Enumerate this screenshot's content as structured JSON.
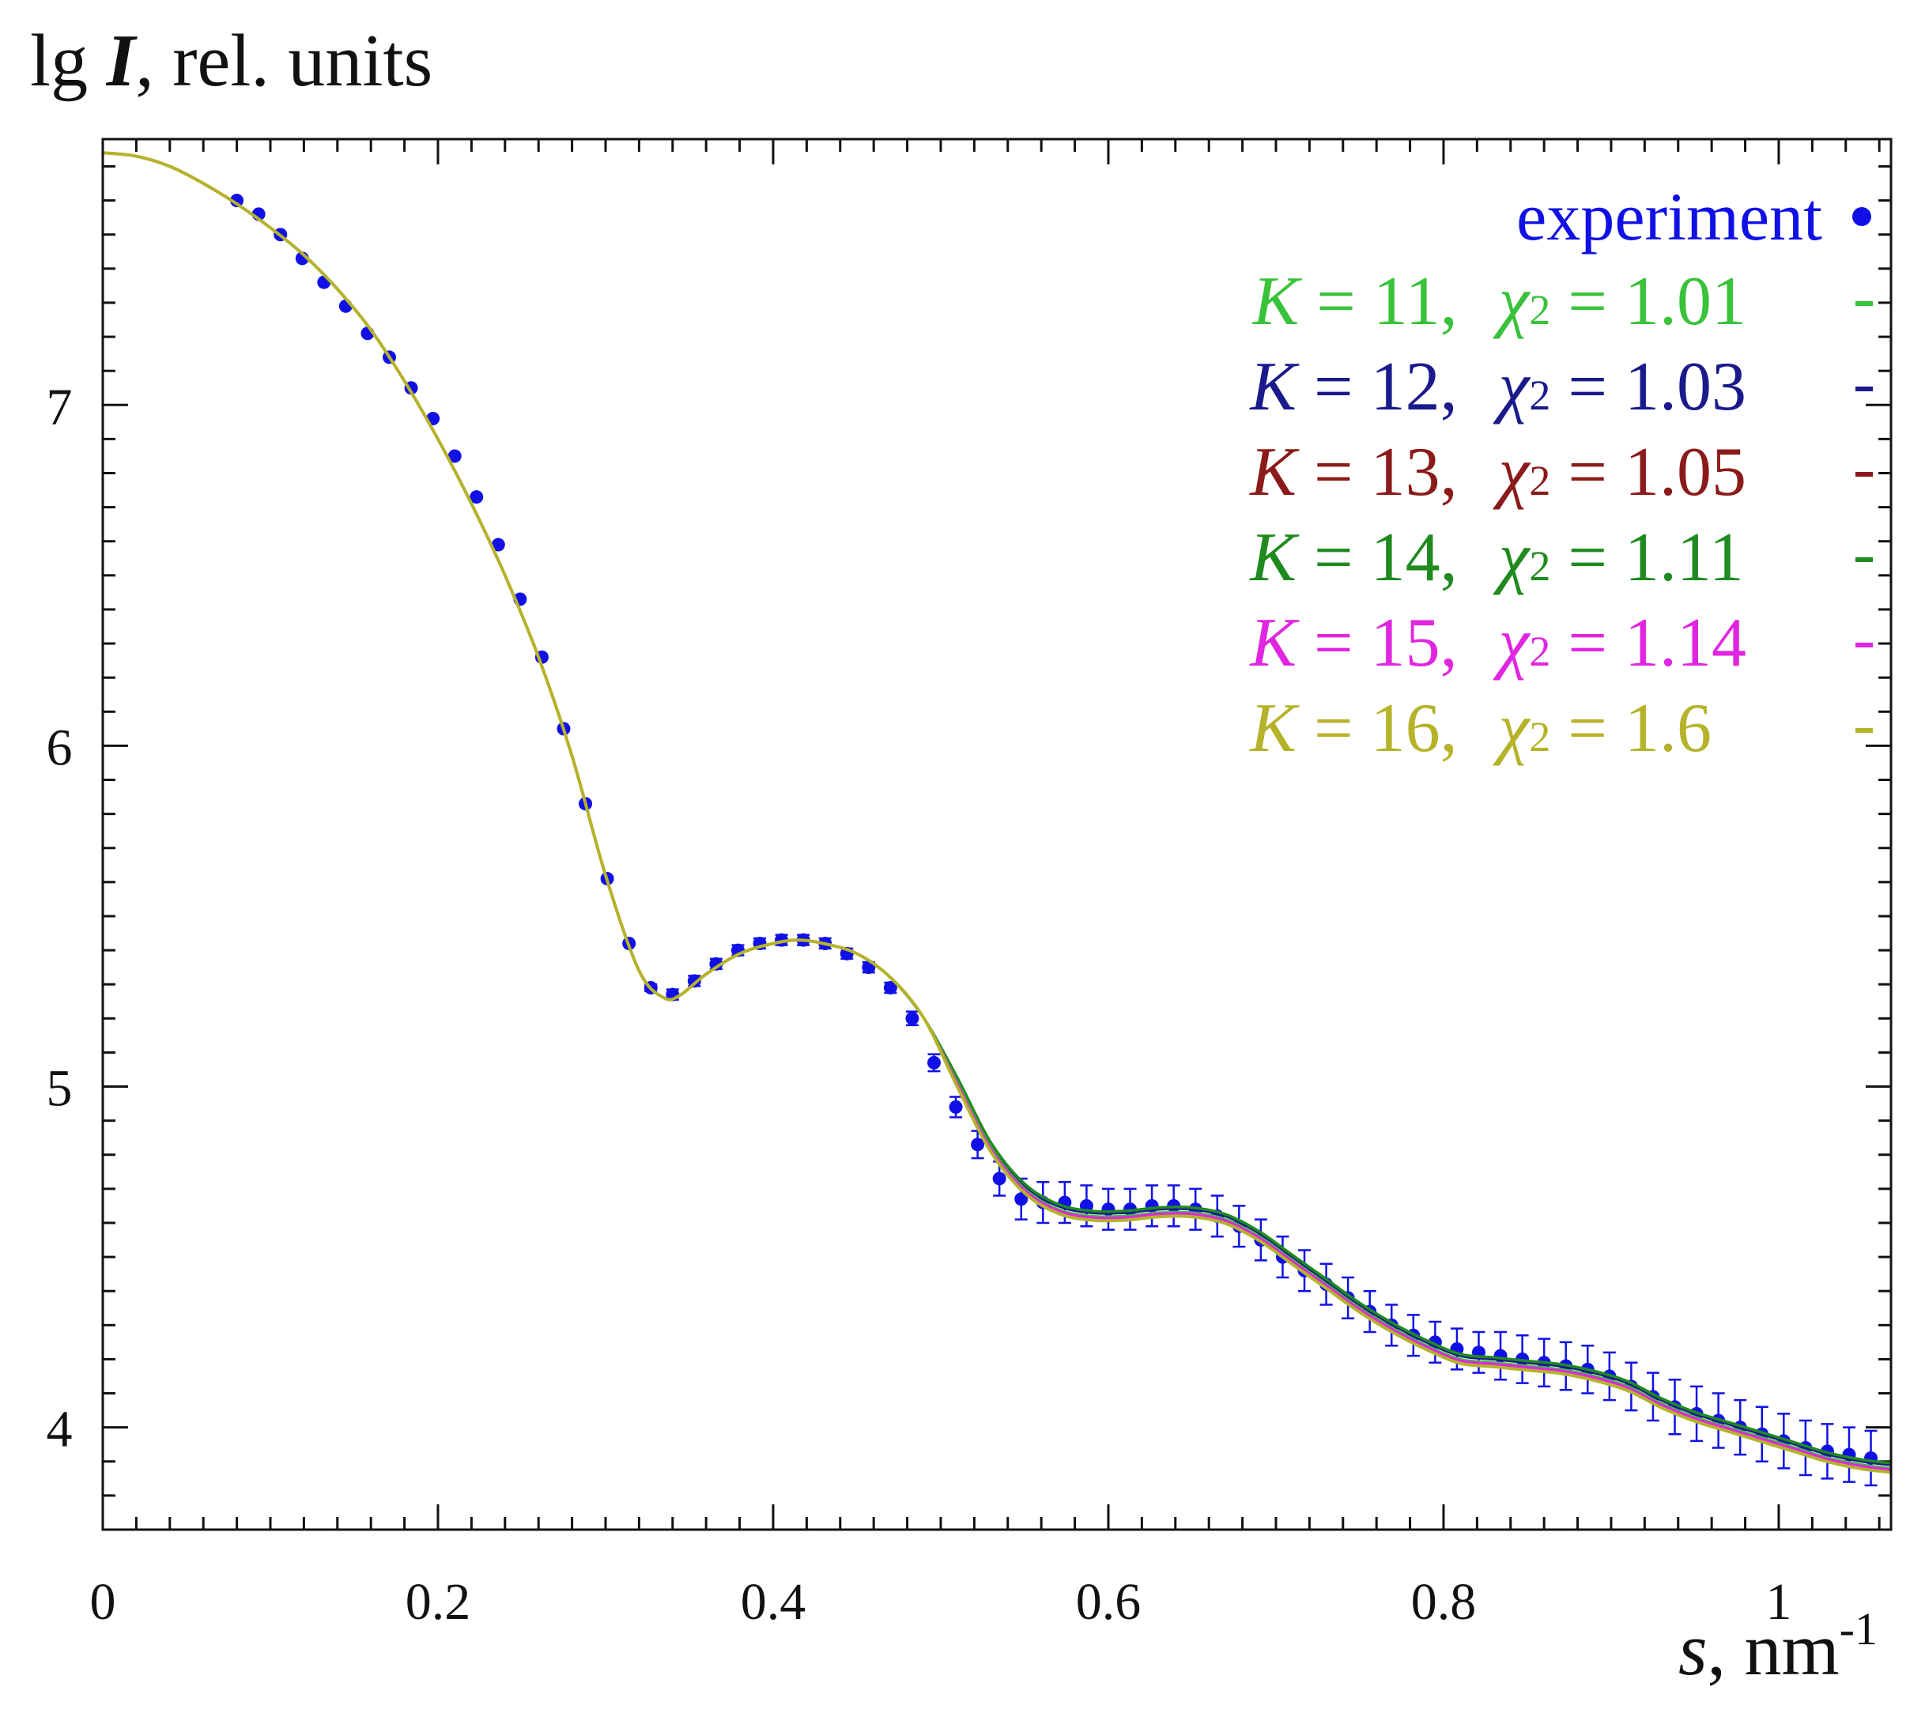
{
  "colors": {
    "experiment": "#1010e6",
    "k11": "#39c23a",
    "k12": "#1a1a8c",
    "k13": "#8b1a1a",
    "k14": "#1f8a1f",
    "k15": "#e026e0",
    "k16": "#b5b32a",
    "axis": "#111111"
  },
  "chart_data": {
    "type": "line",
    "title": "",
    "ylabel_prefix": "lg ",
    "ylabel_symbol": "I",
    "ylabel_suffix": ", rel. units",
    "xlabel_symbol": "s",
    "xlabel_suffix": ", nm",
    "xlabel_exponent": "-1",
    "xlim": [
      0,
      1.067
    ],
    "ylim": [
      3.7,
      7.78
    ],
    "xticks": [
      0,
      0.2,
      0.4,
      0.6,
      0.8,
      1
    ],
    "xtick_labels": [
      "0",
      "0.2",
      "0.4",
      "0.6",
      "0.8",
      "1"
    ],
    "yticks": [
      4,
      5,
      6,
      7
    ],
    "ytick_labels": [
      "4",
      "5",
      "6",
      "7"
    ],
    "grid": false,
    "legend_position": "top-right",
    "experiment": {
      "name": "experiment",
      "marker": "•",
      "x": [
        0.08,
        0.093,
        0.106,
        0.119,
        0.132,
        0.145,
        0.158,
        0.171,
        0.184,
        0.197,
        0.21,
        0.223,
        0.236,
        0.249,
        0.262,
        0.275,
        0.288,
        0.301,
        0.314,
        0.327,
        0.34,
        0.353,
        0.366,
        0.379,
        0.392,
        0.405,
        0.418,
        0.431,
        0.444,
        0.457,
        0.47,
        0.483,
        0.496,
        0.509,
        0.522,
        0.535,
        0.548,
        0.561,
        0.574,
        0.587,
        0.6,
        0.613,
        0.626,
        0.639,
        0.652,
        0.665,
        0.678,
        0.691,
        0.704,
        0.717,
        0.73,
        0.743,
        0.756,
        0.769,
        0.782,
        0.795,
        0.808,
        0.821,
        0.834,
        0.847,
        0.86,
        0.873,
        0.886,
        0.899,
        0.912,
        0.925,
        0.938,
        0.951,
        0.964,
        0.977,
        0.99,
        1.003,
        1.016,
        1.029,
        1.042,
        1.055
      ],
      "y": [
        7.6,
        7.56,
        7.5,
        7.43,
        7.36,
        7.29,
        7.21,
        7.14,
        7.05,
        6.96,
        6.85,
        6.73,
        6.59,
        6.43,
        6.26,
        6.05,
        5.83,
        5.61,
        5.42,
        5.29,
        5.27,
        5.31,
        5.36,
        5.4,
        5.42,
        5.43,
        5.43,
        5.42,
        5.39,
        5.35,
        5.29,
        5.2,
        5.07,
        4.94,
        4.83,
        4.73,
        4.67,
        4.66,
        4.66,
        4.65,
        4.64,
        4.64,
        4.65,
        4.65,
        4.64,
        4.62,
        4.59,
        4.55,
        4.5,
        4.46,
        4.42,
        4.38,
        4.34,
        4.3,
        4.27,
        4.25,
        4.23,
        4.22,
        4.21,
        4.2,
        4.19,
        4.18,
        4.17,
        4.15,
        4.12,
        4.09,
        4.06,
        4.04,
        4.02,
        4.0,
        3.98,
        3.96,
        3.94,
        3.93,
        3.92,
        3.91
      ],
      "error": [
        0.005,
        0.005,
        0.005,
        0.005,
        0.005,
        0.005,
        0.005,
        0.005,
        0.005,
        0.005,
        0.005,
        0.005,
        0.005,
        0.005,
        0.005,
        0.005,
        0.006,
        0.006,
        0.006,
        0.01,
        0.015,
        0.015,
        0.015,
        0.015,
        0.015,
        0.015,
        0.015,
        0.015,
        0.015,
        0.015,
        0.015,
        0.02,
        0.025,
        0.03,
        0.04,
        0.05,
        0.06,
        0.06,
        0.06,
        0.06,
        0.06,
        0.06,
        0.06,
        0.06,
        0.06,
        0.06,
        0.06,
        0.06,
        0.06,
        0.06,
        0.06,
        0.06,
        0.06,
        0.06,
        0.06,
        0.06,
        0.06,
        0.06,
        0.07,
        0.07,
        0.07,
        0.07,
        0.07,
        0.07,
        0.07,
        0.07,
        0.08,
        0.08,
        0.08,
        0.08,
        0.08,
        0.08,
        0.08,
        0.08,
        0.08,
        0.08
      ]
    },
    "fit_x": [
      0.0,
      0.02,
      0.04,
      0.06,
      0.08,
      0.1,
      0.12,
      0.14,
      0.16,
      0.18,
      0.2,
      0.22,
      0.24,
      0.26,
      0.28,
      0.3,
      0.32,
      0.335,
      0.345,
      0.36,
      0.38,
      0.4,
      0.415,
      0.43,
      0.45,
      0.47,
      0.49,
      0.51,
      0.53,
      0.55,
      0.57,
      0.59,
      0.61,
      0.63,
      0.65,
      0.67,
      0.69,
      0.71,
      0.73,
      0.75,
      0.77,
      0.79,
      0.81,
      0.83,
      0.85,
      0.87,
      0.89,
      0.91,
      0.93,
      0.95,
      0.97,
      0.99,
      1.01,
      1.03,
      1.05,
      1.067
    ],
    "series": [
      {
        "name": "K = 11,  χ2 = 1.01",
        "K": 11,
        "chi2": "1.01",
        "offset": 0.0,
        "y": [
          7.74,
          7.73,
          7.7,
          7.65,
          7.59,
          7.52,
          7.44,
          7.34,
          7.22,
          7.07,
          6.9,
          6.71,
          6.5,
          6.26,
          5.97,
          5.62,
          5.34,
          5.26,
          5.27,
          5.33,
          5.39,
          5.42,
          5.43,
          5.42,
          5.39,
          5.32,
          5.2,
          5.01,
          4.82,
          4.7,
          4.64,
          4.62,
          4.62,
          4.63,
          4.63,
          4.61,
          4.56,
          4.49,
          4.42,
          4.35,
          4.29,
          4.24,
          4.2,
          4.19,
          4.18,
          4.17,
          4.15,
          4.12,
          4.07,
          4.03,
          4.0,
          3.97,
          3.94,
          3.91,
          3.89,
          3.88
        ]
      },
      {
        "name": "K = 12,  χ2 = 1.03",
        "K": 12,
        "chi2": "1.03",
        "offset": 0.01,
        "y": [
          7.74,
          7.73,
          7.7,
          7.65,
          7.59,
          7.52,
          7.44,
          7.34,
          7.22,
          7.07,
          6.9,
          6.71,
          6.5,
          6.26,
          5.97,
          5.62,
          5.34,
          5.26,
          5.27,
          5.33,
          5.39,
          5.42,
          5.43,
          5.42,
          5.39,
          5.32,
          5.2,
          5.01,
          4.82,
          4.7,
          4.64,
          4.62,
          4.62,
          4.63,
          4.63,
          4.61,
          4.56,
          4.49,
          4.42,
          4.35,
          4.29,
          4.24,
          4.2,
          4.19,
          4.18,
          4.17,
          4.15,
          4.12,
          4.07,
          4.03,
          4.0,
          3.97,
          3.94,
          3.91,
          3.89,
          3.88
        ]
      },
      {
        "name": "K = 13,  χ2 = 1.05",
        "K": 13,
        "chi2": "1.05",
        "offset": -0.008,
        "y": [
          7.74,
          7.73,
          7.7,
          7.65,
          7.59,
          7.52,
          7.44,
          7.34,
          7.22,
          7.07,
          6.9,
          6.71,
          6.5,
          6.26,
          5.97,
          5.62,
          5.34,
          5.26,
          5.27,
          5.33,
          5.39,
          5.42,
          5.43,
          5.42,
          5.39,
          5.32,
          5.2,
          5.01,
          4.82,
          4.7,
          4.64,
          4.62,
          4.62,
          4.63,
          4.63,
          4.61,
          4.56,
          4.49,
          4.42,
          4.35,
          4.29,
          4.24,
          4.2,
          4.19,
          4.18,
          4.17,
          4.15,
          4.12,
          4.07,
          4.03,
          4.0,
          3.97,
          3.94,
          3.91,
          3.89,
          3.88
        ]
      },
      {
        "name": "K = 14,  χ2 = 1.11",
        "K": 14,
        "chi2": "1.11",
        "offset": 0.015,
        "y": [
          7.74,
          7.73,
          7.7,
          7.65,
          7.59,
          7.52,
          7.44,
          7.34,
          7.22,
          7.07,
          6.9,
          6.71,
          6.5,
          6.26,
          5.97,
          5.62,
          5.34,
          5.26,
          5.27,
          5.33,
          5.39,
          5.42,
          5.43,
          5.42,
          5.39,
          5.32,
          5.2,
          5.01,
          4.82,
          4.7,
          4.64,
          4.62,
          4.62,
          4.63,
          4.63,
          4.61,
          4.56,
          4.49,
          4.42,
          4.35,
          4.29,
          4.24,
          4.2,
          4.19,
          4.18,
          4.17,
          4.15,
          4.12,
          4.07,
          4.03,
          4.0,
          3.97,
          3.94,
          3.91,
          3.89,
          3.88
        ]
      },
      {
        "name": "K = 15,  χ2 = 1.14",
        "K": 15,
        "chi2": "1.14",
        "offset": -0.004,
        "y": [
          7.74,
          7.73,
          7.7,
          7.65,
          7.59,
          7.52,
          7.44,
          7.34,
          7.22,
          7.07,
          6.9,
          6.71,
          6.5,
          6.26,
          5.97,
          5.62,
          5.34,
          5.26,
          5.27,
          5.33,
          5.39,
          5.42,
          5.43,
          5.42,
          5.39,
          5.32,
          5.2,
          5.01,
          4.82,
          4.7,
          4.64,
          4.62,
          4.62,
          4.63,
          4.63,
          4.61,
          4.56,
          4.49,
          4.42,
          4.35,
          4.29,
          4.24,
          4.2,
          4.19,
          4.18,
          4.17,
          4.15,
          4.12,
          4.07,
          4.03,
          4.0,
          3.97,
          3.94,
          3.91,
          3.89,
          3.88
        ]
      },
      {
        "name": "K = 16,  χ2 = 1.6",
        "K": 16,
        "chi2": "1.6",
        "offset": -0.012,
        "y": [
          7.74,
          7.73,
          7.7,
          7.65,
          7.59,
          7.52,
          7.44,
          7.34,
          7.22,
          7.07,
          6.9,
          6.71,
          6.5,
          6.26,
          5.97,
          5.62,
          5.34,
          5.26,
          5.27,
          5.33,
          5.39,
          5.42,
          5.43,
          5.42,
          5.39,
          5.32,
          5.2,
          5.01,
          4.82,
          4.7,
          4.64,
          4.62,
          4.62,
          4.63,
          4.63,
          4.61,
          4.56,
          4.49,
          4.42,
          4.35,
          4.29,
          4.24,
          4.2,
          4.19,
          4.18,
          4.17,
          4.15,
          4.12,
          4.07,
          4.03,
          4.0,
          3.97,
          3.94,
          3.91,
          3.89,
          3.88
        ]
      }
    ]
  },
  "legend": {
    "experiment_label": "experiment",
    "k_symbol": "K",
    "chi_symbol": "χ",
    "chi_exponent": "2",
    "equals": " = ",
    "comma": ",",
    "entries": [
      {
        "k": "11",
        "chi": "1.01"
      },
      {
        "k": "12",
        "chi": "1.03"
      },
      {
        "k": "13",
        "chi": "1.05"
      },
      {
        "k": "14",
        "chi": "1.11"
      },
      {
        "k": "15",
        "chi": "1.14"
      },
      {
        "k": "16",
        "chi": "1.6"
      }
    ]
  }
}
